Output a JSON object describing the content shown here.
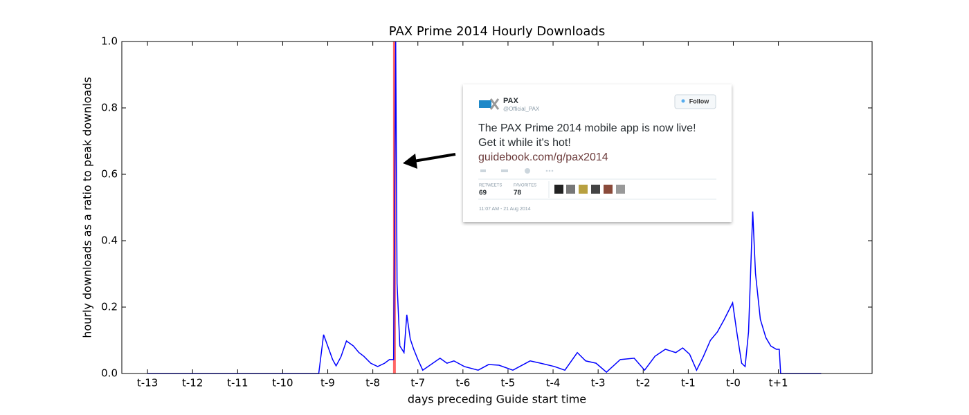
{
  "chart_data": {
    "type": "line",
    "title": "PAX Prime 2014 Hourly Downloads",
    "xlabel": "days preceding Guide start time",
    "ylabel": "hourly downloads as a ratio to peak downloads",
    "x": [
      -13,
      -9.2,
      -9.092,
      -8.892,
      -8.815,
      -8.708,
      -8.585,
      -8.431,
      -8.308,
      -8.2,
      -8.046,
      -7.892,
      -7.738,
      -7.631,
      -7.538,
      -7.492,
      -7.462,
      -7.4,
      -7.308,
      -7.246,
      -7.169,
      -7.092,
      -7,
      -6.892,
      -6.508,
      -6.354,
      -6.2,
      -5.969,
      -5.662,
      -5.431,
      -5.2,
      -4.892,
      -4.508,
      -4.277,
      -3.969,
      -3.738,
      -3.462,
      -3.277,
      -3.046,
      -2.815,
      -2.508,
      -2.2,
      -1.969,
      -1.738,
      -1.508,
      -1.277,
      -1.123,
      -0.969,
      -0.815,
      -0.662,
      -0.508,
      -0.354,
      -0.2,
      -0.015,
      0.077,
      0.185,
      0.262,
      0.338,
      0.431,
      0.492,
      0.6,
      0.723,
      0.831,
      0.954,
      1.02,
      1.05,
      1.95
    ],
    "series": [
      {
        "name": "downloads",
        "color": "#0000ff",
        "values": [
          0,
          0,
          0.117,
          0.042,
          0.023,
          0.05,
          0.098,
          0.083,
          0.063,
          0.052,
          0.031,
          0.021,
          0.031,
          0.042,
          0.042,
          1.0,
          0.271,
          0.083,
          0.063,
          0.177,
          0.104,
          0.073,
          0.042,
          0.01,
          0.046,
          0.031,
          0.038,
          0.021,
          0.01,
          0.027,
          0.025,
          0.01,
          0.038,
          0.031,
          0.021,
          0.01,
          0.063,
          0.038,
          0.031,
          0.004,
          0.042,
          0.046,
          0.01,
          0.052,
          0.073,
          0.063,
          0.077,
          0.058,
          0.01,
          0.052,
          0.1,
          0.125,
          0.163,
          0.213,
          0.125,
          0.031,
          0.021,
          0.125,
          0.488,
          0.302,
          0.163,
          0.108,
          0.083,
          0.073,
          0.073,
          0,
          0
        ]
      }
    ],
    "marker_x": -7.52,
    "marker_color": "#ff6666",
    "xlim": [
      -13.57,
      3.08
    ],
    "ylim": [
      0,
      1
    ],
    "xticks": [
      {
        "value": -13,
        "label": "t-13"
      },
      {
        "value": -12,
        "label": "t-12"
      },
      {
        "value": -11,
        "label": "t-11"
      },
      {
        "value": -10,
        "label": "t-10"
      },
      {
        "value": -9,
        "label": "t-9"
      },
      {
        "value": -8,
        "label": "t-8"
      },
      {
        "value": -7,
        "label": "t-7"
      },
      {
        "value": -6,
        "label": "t-6"
      },
      {
        "value": -5,
        "label": "t-5"
      },
      {
        "value": -4,
        "label": "t-4"
      },
      {
        "value": -3,
        "label": "t-3"
      },
      {
        "value": -2,
        "label": "t-2"
      },
      {
        "value": -1,
        "label": "t-1"
      },
      {
        "value": 0,
        "label": "t-0"
      },
      {
        "value": 1,
        "label": "t+1"
      }
    ],
    "yticks": [
      {
        "value": 0,
        "label": "0.0"
      },
      0.2,
      0.4,
      0.6,
      0.8,
      {
        "value": 1,
        "label": "1.0"
      }
    ],
    "tweet": {
      "name": "PAX",
      "handle": "@Official_PAX",
      "follow": "Follow",
      "text": [
        "The PAX Prime 2014 mobile app is now live!",
        "Get it while it's hot!"
      ],
      "link": "guidebook.com/g/pax2014",
      "retweets_label": "RETWEETS",
      "retweets": 69,
      "favorites_label": "FAVORITES",
      "favorites": 78,
      "time": "11:07 AM - 21 Aug 2014"
    }
  }
}
